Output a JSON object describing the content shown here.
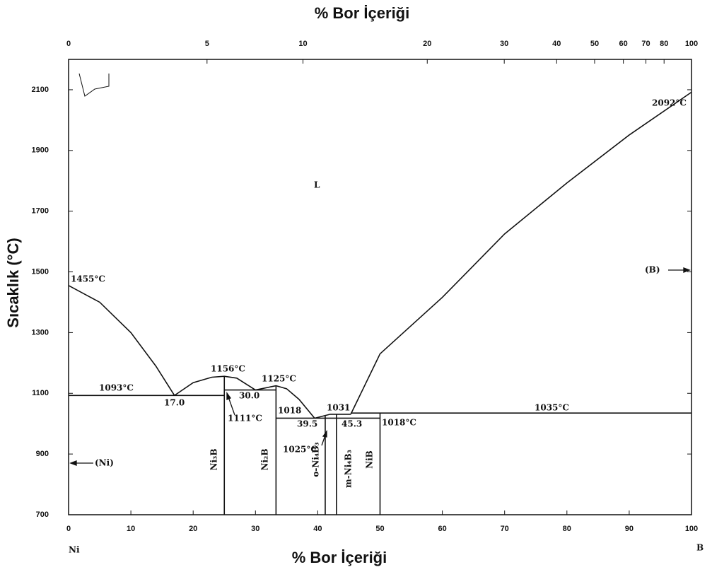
{
  "chart_data": {
    "type": "phase-diagram",
    "title": "% Bor İçeriği",
    "x_label": "% Bor İçeriği",
    "y_label": "Sıcaklık (°C)",
    "xlim": [
      0,
      100
    ],
    "xticks": [
      0,
      10,
      20,
      30,
      40,
      50,
      60,
      70,
      80,
      90,
      100
    ],
    "x2lim": [
      0,
      100
    ],
    "x2ticks": [
      0,
      5,
      10,
      20,
      30,
      40,
      50,
      60,
      70,
      80,
      100
    ],
    "ylim": [
      700,
      2200
    ],
    "yticks": [
      700,
      900,
      1100,
      1300,
      1500,
      1700,
      1900,
      2100
    ],
    "color": "#111111",
    "lines": [
      {
        "x": [
          0,
          5,
          10,
          14,
          17
        ],
        "values": [
          1455,
          1400,
          1300,
          1190,
          1093
        ]
      },
      {
        "x": [
          17,
          20,
          23,
          25,
          27,
          30
        ],
        "values": [
          1093,
          1135,
          1153,
          1156,
          1150,
          1111
        ]
      },
      {
        "x": [
          30,
          33.3,
          35,
          37,
          39.5
        ],
        "values": [
          1111,
          1125,
          1115,
          1080,
          1018
        ]
      },
      {
        "x": [
          39.5,
          42,
          45.3
        ],
        "values": [
          1018,
          1031,
          1031
        ]
      },
      {
        "x": [
          45.3,
          50,
          60,
          70,
          80,
          90,
          100
        ],
        "values": [
          1031,
          1230,
          1416,
          1625,
          1793,
          1951,
          2092
        ]
      },
      {
        "x": [
          0,
          25
        ],
        "values": [
          1093,
          1093
        ]
      },
      {
        "x": [
          25,
          33.3
        ],
        "values": [
          1111,
          1111
        ]
      },
      {
        "x": [
          33.3,
          43
        ],
        "values": [
          1018,
          1018
        ]
      },
      {
        "x": [
          43,
          50
        ],
        "values": [
          1018,
          1018
        ]
      },
      {
        "x": [
          45.3,
          100
        ],
        "values": [
          1035,
          1035
        ]
      },
      {
        "x": [
          25,
          25
        ],
        "values": [
          700,
          1156
        ]
      },
      {
        "x": [
          33.3,
          33.3
        ],
        "values": [
          700,
          1125
        ]
      },
      {
        "x": [
          41.2,
          41.2
        ],
        "values": [
          700,
          1025
        ]
      },
      {
        "x": [
          43,
          43
        ],
        "values": [
          700,
          1031
        ]
      },
      {
        "x": [
          50,
          50
        ],
        "values": [
          700,
          1035
        ]
      }
    ],
    "annotations": [
      "1455°C",
      "1093°C",
      "17.0",
      "1156°C",
      "30.0",
      "1111°C",
      "1125°C",
      "1018",
      "39.5",
      "1031",
      "45.3",
      "1018°C",
      "1025°C",
      "1035°C",
      "2092°C",
      "L",
      "(B)",
      "(Ni)",
      "Ni₃B",
      "Ni₂B",
      "o-Ni₄B₃",
      "m-Ni₄B₃",
      "NiB",
      "Ni",
      "B"
    ]
  }
}
